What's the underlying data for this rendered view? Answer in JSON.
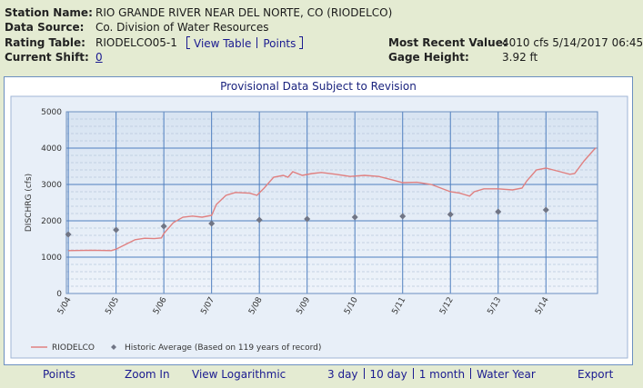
{
  "header": {
    "station_name": {
      "label": "Station Name:",
      "value": "RIO GRANDE RIVER NEAR DEL NORTE, CO (RIODELCO)"
    },
    "data_source": {
      "label": "Data Source:",
      "value": "Co. Division of Water Resources"
    },
    "rating_table": {
      "label": "Rating Table:",
      "value": "RIODELCO05-1",
      "links": [
        "View Table",
        "Points"
      ]
    },
    "current_shift": {
      "label": "Current Shift:",
      "value": "0"
    },
    "most_recent_value": {
      "label": "Most Recent Value:",
      "value": "4010 cfs 5/14/2017 06:45"
    },
    "gage_height": {
      "label": "Gage Height:",
      "value": "3.92 ft"
    }
  },
  "chart_data": {
    "type": "line",
    "title": "Provisional Data Subject to Revision",
    "y_label": "DISCHRG (cfs)",
    "xlim": [
      -0.04,
      11.08
    ],
    "xticks": [
      {
        "value": 0,
        "label": "5/04"
      },
      {
        "value": 1,
        "label": "5/05"
      },
      {
        "value": 2,
        "label": "5/06"
      },
      {
        "value": 3,
        "label": "5/07"
      },
      {
        "value": 4,
        "label": "5/08"
      },
      {
        "value": 5,
        "label": "5/09"
      },
      {
        "value": 6,
        "label": "5/10"
      },
      {
        "value": 7,
        "label": "5/11"
      },
      {
        "value": 8,
        "label": "5/12"
      },
      {
        "value": 9,
        "label": "5/13"
      },
      {
        "value": 10,
        "label": "5/14"
      }
    ],
    "ylim": [
      0,
      5000
    ],
    "yticks": [
      0,
      1000,
      2000,
      3000,
      4000,
      5000
    ],
    "grid": true,
    "series": [
      {
        "name": "RIODELCO",
        "color": "#e08080",
        "x": [
          0,
          0.5,
          0.9,
          1.0,
          1.2,
          1.4,
          1.6,
          1.8,
          1.95,
          2.0,
          2.2,
          2.4,
          2.6,
          2.8,
          3.0,
          3.1,
          3.3,
          3.5,
          3.8,
          3.95,
          4.1,
          4.3,
          4.5,
          4.6,
          4.7,
          4.9,
          5.1,
          5.3,
          5.6,
          5.9,
          6.2,
          6.5,
          6.8,
          7.0,
          7.3,
          7.6,
          7.8,
          8.0,
          8.2,
          8.4,
          8.5,
          8.7,
          9.0,
          9.3,
          9.5,
          9.6,
          9.8,
          10.0,
          10.3,
          10.5,
          10.6,
          10.8,
          11.0,
          11.05
        ],
        "values": [
          1180,
          1190,
          1180,
          1220,
          1350,
          1480,
          1520,
          1510,
          1530,
          1650,
          1950,
          2100,
          2130,
          2100,
          2150,
          2450,
          2700,
          2780,
          2760,
          2700,
          2900,
          3200,
          3250,
          3200,
          3350,
          3250,
          3300,
          3330,
          3280,
          3220,
          3250,
          3220,
          3120,
          3050,
          3060,
          3000,
          2900,
          2800,
          2760,
          2680,
          2800,
          2880,
          2880,
          2850,
          2900,
          3100,
          3400,
          3450,
          3350,
          3280,
          3300,
          3650,
          3950,
          4010
        ]
      },
      {
        "name": "Historic Average (Based on 119 years of record)",
        "color": "#707585",
        "type": "scatter",
        "x": [
          0,
          1,
          2,
          3,
          4,
          5,
          6,
          7,
          8,
          9,
          10
        ],
        "values": [
          1625,
          1750,
          1850,
          1925,
          2025,
          2050,
          2100,
          2125,
          2175,
          2250,
          2300
        ]
      }
    ]
  },
  "nav": {
    "left": [
      "Points",
      "Zoom In",
      "View Logarithmic"
    ],
    "ranges": [
      "3 day",
      "10 day",
      "1 month",
      "Water Year"
    ],
    "right": "Export"
  }
}
